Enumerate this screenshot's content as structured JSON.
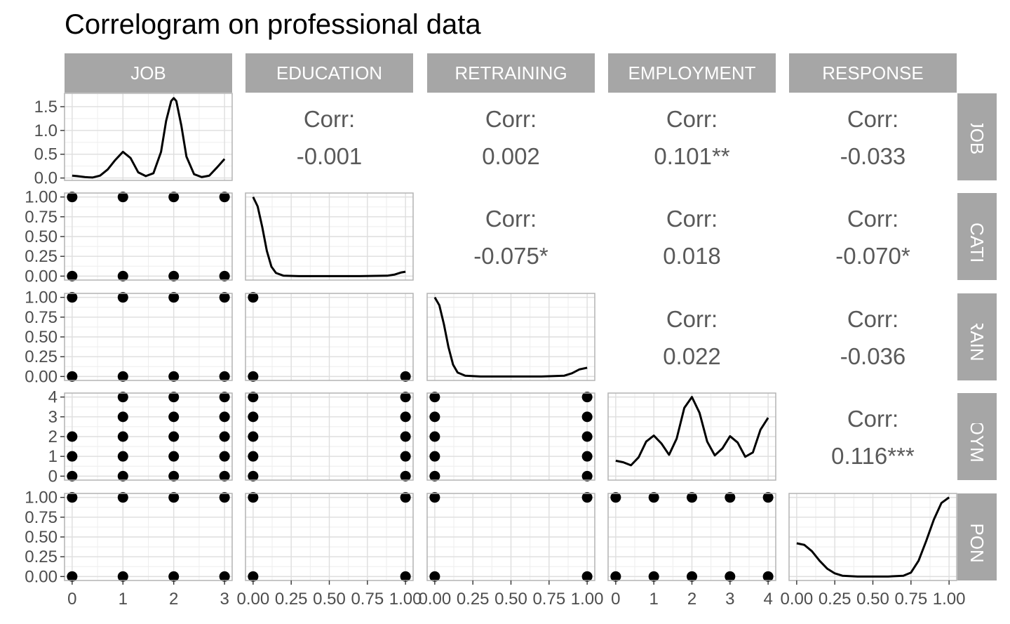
{
  "title": "Correlogram on professional data",
  "colors": {
    "strip": "#a6a6a6",
    "strip_text": "#ffffff",
    "panel_border": "#b3b3b3",
    "grid_major": "#dedede",
    "grid_minor": "#eeeeee",
    "ink": "#000000",
    "corr_text": "#595959",
    "tick_text": "#4d4d4d"
  },
  "chart_data": {
    "type": "scatter-matrix",
    "title": "Correlogram on professional data",
    "variables": [
      {
        "name": "JOB",
        "row_label": "JOB",
        "range": [
          -0.15,
          3.15
        ],
        "ticks": [
          0,
          1,
          2,
          3
        ],
        "tick_labels": [
          "0",
          "1",
          "2",
          "3"
        ],
        "levels": [
          0,
          1,
          2,
          3
        ]
      },
      {
        "name": "EDUCATION",
        "row_label": "DUCATIO",
        "range": [
          -0.05,
          1.05
        ],
        "ticks": [
          0,
          0.25,
          0.5,
          0.75,
          1
        ],
        "tick_labels": [
          "0.00",
          "0.25",
          "0.50",
          "0.75",
          "1.00"
        ],
        "levels": [
          0,
          1
        ]
      },
      {
        "name": "RETRAINING",
        "row_label": "ETRAININ",
        "range": [
          -0.05,
          1.05
        ],
        "ticks": [
          0,
          0.25,
          0.5,
          0.75,
          1
        ],
        "tick_labels": [
          "0.00",
          "0.25",
          "0.50",
          "0.75",
          "1.00"
        ],
        "levels": [
          0,
          1
        ]
      },
      {
        "name": "EMPLOYMENT",
        "row_label": "PLOYME",
        "range": [
          -0.2,
          4.2
        ],
        "ticks": [
          0,
          1,
          2,
          3,
          4
        ],
        "tick_labels": [
          "0",
          "1",
          "2",
          "3",
          "4"
        ],
        "levels": [
          0,
          1,
          2,
          3,
          4
        ]
      },
      {
        "name": "RESPONSE",
        "row_label": "ESPONS",
        "range": [
          -0.05,
          1.05
        ],
        "ticks": [
          0,
          0.25,
          0.5,
          0.75,
          1
        ],
        "tick_labels": [
          "0.00",
          "0.25",
          "0.50",
          "0.75",
          "1.00"
        ],
        "levels": [
          0,
          1
        ]
      }
    ],
    "top_left_density_axis": {
      "range": [
        -0.05,
        1.78
      ],
      "ticks": [
        0,
        0.5,
        1.0,
        1.5
      ],
      "tick_labels": [
        "0.0",
        "0.5",
        "1.0",
        "1.5"
      ]
    },
    "correlations": [
      {
        "row": 0,
        "col": 1,
        "label": "Corr:",
        "value": "-0.001"
      },
      {
        "row": 0,
        "col": 2,
        "label": "Corr:",
        "value": "0.002"
      },
      {
        "row": 0,
        "col": 3,
        "label": "Corr:",
        "value": "0.101**"
      },
      {
        "row": 0,
        "col": 4,
        "label": "Corr:",
        "value": "-0.033"
      },
      {
        "row": 1,
        "col": 2,
        "label": "Corr:",
        "value": "-0.075*"
      },
      {
        "row": 1,
        "col": 3,
        "label": "Corr:",
        "value": "0.018"
      },
      {
        "row": 1,
        "col": 4,
        "label": "Corr:",
        "value": "-0.070*"
      },
      {
        "row": 2,
        "col": 3,
        "label": "Corr:",
        "value": "0.022"
      },
      {
        "row": 2,
        "col": 4,
        "label": "Corr:",
        "value": "-0.036"
      },
      {
        "row": 3,
        "col": 4,
        "label": "Corr:",
        "value": "0.116***"
      }
    ],
    "densities": [
      {
        "variable": "JOB",
        "x": [
          0,
          0.1,
          0.25,
          0.4,
          0.55,
          0.7,
          0.85,
          1.0,
          1.15,
          1.3,
          1.45,
          1.6,
          1.75,
          1.85,
          1.95,
          2.0,
          2.05,
          2.15,
          2.25,
          2.4,
          2.55,
          2.7,
          2.85,
          3.0
        ],
        "y": [
          0.05,
          0.04,
          0.02,
          0.01,
          0.05,
          0.18,
          0.38,
          0.55,
          0.42,
          0.12,
          0.04,
          0.1,
          0.55,
          1.2,
          1.62,
          1.68,
          1.62,
          1.1,
          0.45,
          0.08,
          0.02,
          0.05,
          0.22,
          0.4
        ]
      },
      {
        "variable": "EDUCATION",
        "x": [
          0,
          0.03,
          0.06,
          0.09,
          0.12,
          0.15,
          0.2,
          0.3,
          0.5,
          0.7,
          0.88,
          0.93,
          0.97,
          1.0
        ],
        "y": [
          1.0,
          0.88,
          0.62,
          0.32,
          0.12,
          0.04,
          0.005,
          0.0,
          0.0,
          0.0,
          0.005,
          0.02,
          0.045,
          0.055
        ]
      },
      {
        "variable": "RETRAINING",
        "x": [
          0,
          0.03,
          0.06,
          0.09,
          0.12,
          0.15,
          0.2,
          0.3,
          0.5,
          0.7,
          0.85,
          0.9,
          0.95,
          1.0
        ],
        "y": [
          1.0,
          0.9,
          0.66,
          0.37,
          0.15,
          0.05,
          0.01,
          0.0,
          0.0,
          0.0,
          0.01,
          0.04,
          0.09,
          0.11
        ]
      },
      {
        "variable": "EMPLOYMENT",
        "x": [
          0,
          0.2,
          0.4,
          0.6,
          0.8,
          1.0,
          1.2,
          1.4,
          1.6,
          1.8,
          2.0,
          2.2,
          2.4,
          2.6,
          2.8,
          3.0,
          3.2,
          3.4,
          3.6,
          3.8,
          4.0
        ],
        "y": [
          0.78,
          0.7,
          0.55,
          0.95,
          1.75,
          2.05,
          1.65,
          1.08,
          1.9,
          3.45,
          4.0,
          3.2,
          1.75,
          1.05,
          1.4,
          2.02,
          1.7,
          0.98,
          1.2,
          2.35,
          2.95
        ]
      },
      {
        "variable": "RESPONSE",
        "x": [
          0,
          0.05,
          0.1,
          0.15,
          0.2,
          0.25,
          0.3,
          0.4,
          0.5,
          0.6,
          0.7,
          0.75,
          0.8,
          0.85,
          0.9,
          0.95,
          1.0
        ],
        "y": [
          0.42,
          0.4,
          0.32,
          0.2,
          0.1,
          0.04,
          0.01,
          0.0,
          0.0,
          0.0,
          0.01,
          0.05,
          0.2,
          0.45,
          0.72,
          0.93,
          1.0
        ]
      }
    ],
    "scatter_pairs": [
      {
        "row": 1,
        "col": 0,
        "x": [
          0,
          1,
          2,
          3,
          0,
          1,
          2,
          3
        ],
        "y": [
          1,
          1,
          1,
          1,
          0,
          0,
          0,
          0
        ]
      },
      {
        "row": 2,
        "col": 0,
        "x": [
          0,
          1,
          2,
          3,
          0,
          1,
          2,
          3
        ],
        "y": [
          1,
          1,
          1,
          1,
          0,
          0,
          0,
          0
        ]
      },
      {
        "row": 2,
        "col": 1,
        "x": [
          0,
          0,
          1
        ],
        "y": [
          1,
          0,
          0
        ]
      },
      {
        "row": 3,
        "col": 0,
        "x": [
          0,
          0,
          0,
          1,
          1,
          1,
          1,
          1,
          2,
          2,
          2,
          2,
          2,
          3,
          3,
          3,
          3,
          3
        ],
        "y": [
          0,
          1,
          2,
          0,
          1,
          2,
          3,
          4,
          0,
          1,
          2,
          3,
          4,
          0,
          1,
          2,
          3,
          4
        ]
      },
      {
        "row": 3,
        "col": 1,
        "x": [
          0,
          0,
          0,
          0,
          0,
          1,
          1,
          1,
          1,
          1
        ],
        "y": [
          0,
          1,
          2,
          3,
          4,
          0,
          1,
          2,
          3,
          4
        ]
      },
      {
        "row": 3,
        "col": 2,
        "x": [
          0,
          0,
          0,
          0,
          0,
          1,
          1,
          1,
          1,
          1
        ],
        "y": [
          0,
          1,
          2,
          3,
          4,
          0,
          1,
          2,
          3,
          4
        ]
      },
      {
        "row": 4,
        "col": 0,
        "x": [
          0,
          1,
          2,
          3,
          0,
          1,
          2,
          3
        ],
        "y": [
          1,
          1,
          1,
          1,
          0,
          0,
          0,
          0
        ]
      },
      {
        "row": 4,
        "col": 1,
        "x": [
          0,
          1,
          0,
          1
        ],
        "y": [
          1,
          1,
          0,
          0
        ]
      },
      {
        "row": 4,
        "col": 2,
        "x": [
          0,
          1,
          0,
          1
        ],
        "y": [
          1,
          1,
          0,
          0
        ]
      },
      {
        "row": 4,
        "col": 3,
        "x": [
          0,
          1,
          2,
          3,
          4,
          0,
          1,
          2,
          3,
          4
        ],
        "y": [
          1,
          1,
          1,
          1,
          1,
          0,
          0,
          0,
          0,
          0
        ]
      }
    ]
  }
}
